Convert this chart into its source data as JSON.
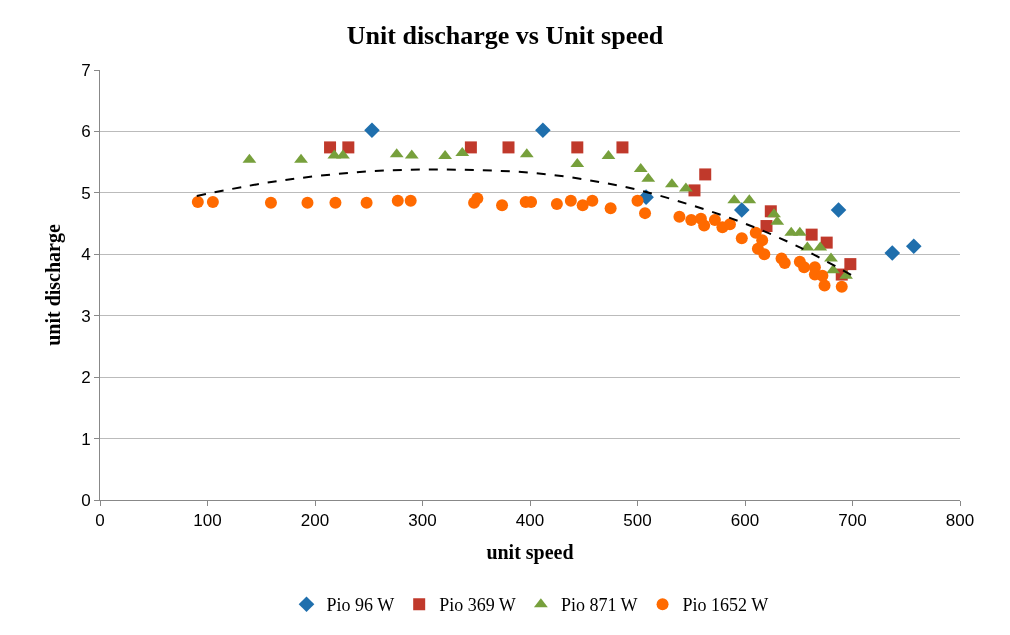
{
  "chart_data": {
    "type": "scatter",
    "title": "Unit discharge vs Unit speed",
    "xlabel": "unit speed",
    "ylabel": "unit discharge",
    "xlim": [
      0,
      800
    ],
    "xticks": [
      0,
      100,
      200,
      300,
      400,
      500,
      600,
      700,
      800
    ],
    "ylim": [
      0,
      7
    ],
    "yticks": [
      0,
      1,
      2,
      3,
      4,
      5,
      6,
      7
    ],
    "grid": "y",
    "legend": "bottom",
    "series": [
      {
        "name": "Pio 96 W",
        "color": "#1f6fad",
        "marker": "diamond",
        "x": [
          253,
          412,
          508,
          597,
          687,
          737,
          757
        ],
        "values": [
          6.02,
          6.02,
          4.93,
          4.72,
          4.72,
          4.02,
          4.13
        ]
      },
      {
        "name": "Pio 369 W",
        "color": "#c0392b",
        "marker": "square",
        "x": [
          214,
          231,
          345,
          380,
          444,
          486,
          553,
          563,
          620,
          624,
          662,
          676,
          681,
          690,
          698
        ],
        "values": [
          5.74,
          5.74,
          5.74,
          5.74,
          5.74,
          5.74,
          5.04,
          5.3,
          4.46,
          4.7,
          4.32,
          4.19,
          null,
          3.67,
          3.84
        ]
      },
      {
        "name": "Pio 871 W",
        "color": "#77a03c",
        "marker": "triangle",
        "x": [
          139,
          187,
          218,
          226,
          276,
          290,
          321,
          337,
          397,
          444,
          473,
          503,
          510,
          532,
          545,
          590,
          604,
          627,
          630,
          643,
          651,
          658,
          670,
          680,
          682,
          694
        ],
        "values": [
          5.54,
          5.54,
          5.61,
          5.61,
          5.63,
          5.61,
          5.6,
          5.65,
          5.63,
          5.47,
          5.6,
          5.39,
          5.23,
          5.14,
          5.07,
          4.88,
          4.88,
          4.65,
          4.53,
          4.35,
          4.35,
          4.11,
          4.11,
          3.93,
          3.74,
          3.65
        ]
      },
      {
        "name": "Pio 1652 W",
        "color": "#ff6a00",
        "marker": "circle",
        "x": [
          91,
          105,
          159,
          193,
          219,
          248,
          277,
          289,
          348,
          351,
          370,
          374,
          396,
          401,
          425,
          438,
          449,
          458,
          475,
          500,
          507,
          539,
          550,
          559,
          562,
          572,
          579,
          586,
          597,
          610,
          616,
          612,
          618,
          634,
          637,
          651,
          655,
          660,
          665,
          665,
          672,
          674,
          686,
          690
        ],
        "values": [
          4.85,
          4.85,
          4.84,
          4.84,
          4.84,
          4.84,
          4.87,
          4.87,
          4.84,
          4.91,
          null,
          4.8,
          4.85,
          4.85,
          4.82,
          4.87,
          4.8,
          4.87,
          4.75,
          4.87,
          4.67,
          4.61,
          4.56,
          4.58,
          4.47,
          4.56,
          4.44,
          4.49,
          4.26,
          4.35,
          4.23,
          4.09,
          4.0,
          3.93,
          3.86,
          3.88,
          3.79,
          null,
          3.79,
          3.67,
          3.65,
          3.49,
          null,
          3.47
        ]
      },
      {
        "type": "line",
        "color": "#000000",
        "line_style": "dashed",
        "marker": "none",
        "x": [
          90,
          150,
          200,
          250,
          300,
          350,
          400,
          450,
          500,
          550,
          600,
          650,
          700
        ],
        "values": [
          4.95,
          5.15,
          5.27,
          5.35,
          5.38,
          5.37,
          5.33,
          5.22,
          5.05,
          4.8,
          4.5,
          4.12,
          3.65
        ]
      }
    ]
  }
}
